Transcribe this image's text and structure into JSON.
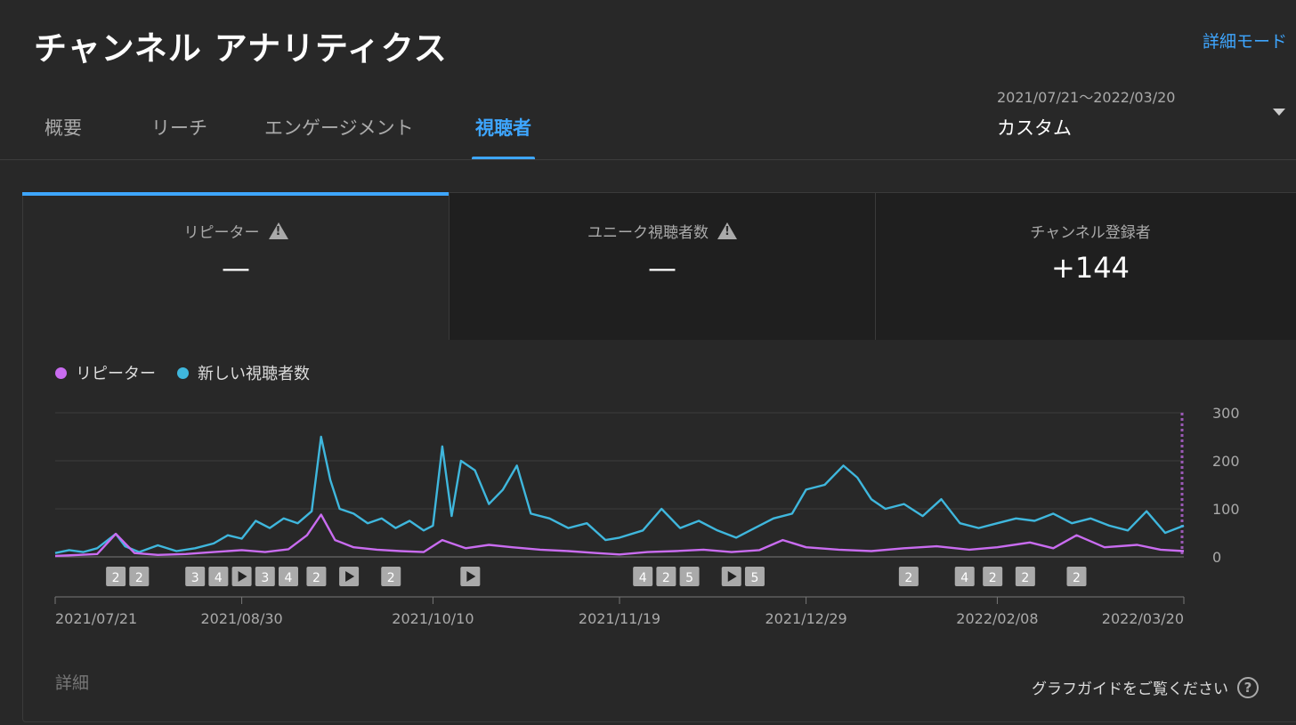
{
  "header": {
    "title": "チャンネル アナリティクス",
    "advanced_mode": "詳細モード"
  },
  "tabs": [
    {
      "label": "概要",
      "active": false
    },
    {
      "label": "リーチ",
      "active": false
    },
    {
      "label": "エンゲージメント",
      "active": false
    },
    {
      "label": "視聴者",
      "active": true
    }
  ],
  "date_picker": {
    "range": "2021/07/21〜2022/03/20",
    "label": "カスタム"
  },
  "metrics": [
    {
      "label": "リピーター",
      "value": "—",
      "warning": true
    },
    {
      "label": "ユニーク視聴者数",
      "value": "—",
      "warning": true
    },
    {
      "label": "チャンネル登録者",
      "value": "+144",
      "warning": false
    }
  ],
  "legend": [
    {
      "label": "リピーター",
      "color": "#c96cf0"
    },
    {
      "label": "新しい視聴者数",
      "color": "#3fb7dd"
    }
  ],
  "chart_data": {
    "type": "line",
    "x_start": "2021/07/21",
    "x_end": "2022/03/20",
    "x_ticks": [
      "2021/07/21",
      "2021/08/30",
      "2021/10/10",
      "2021/11/19",
      "2021/12/29",
      "2022/02/08",
      "2022/03/20"
    ],
    "y_ticks": [
      "0",
      "100",
      "200",
      "300"
    ],
    "ylim": [
      0,
      300
    ],
    "series": [
      {
        "name": "新しい視聴者数",
        "color": "#3fb7dd",
        "points": [
          [
            "2021/07/21",
            8
          ],
          [
            "2021/07/24",
            14
          ],
          [
            "2021/07/27",
            10
          ],
          [
            "2021/07/30",
            18
          ],
          [
            "2021/08/03",
            48
          ],
          [
            "2021/08/05",
            22
          ],
          [
            "2021/08/08",
            10
          ],
          [
            "2021/08/12",
            24
          ],
          [
            "2021/08/16",
            12
          ],
          [
            "2021/08/20",
            18
          ],
          [
            "2021/08/24",
            28
          ],
          [
            "2021/08/27",
            45
          ],
          [
            "2021/08/30",
            38
          ],
          [
            "2021/09/02",
            75
          ],
          [
            "2021/09/05",
            60
          ],
          [
            "2021/09/08",
            80
          ],
          [
            "2021/09/11",
            70
          ],
          [
            "2021/09/14",
            95
          ],
          [
            "2021/09/16",
            250
          ],
          [
            "2021/09/18",
            160
          ],
          [
            "2021/09/20",
            100
          ],
          [
            "2021/09/23",
            90
          ],
          [
            "2021/09/26",
            70
          ],
          [
            "2021/09/29",
            80
          ],
          [
            "2021/10/02",
            60
          ],
          [
            "2021/10/05",
            75
          ],
          [
            "2021/10/08",
            55
          ],
          [
            "2021/10/10",
            65
          ],
          [
            "2021/10/12",
            230
          ],
          [
            "2021/10/14",
            85
          ],
          [
            "2021/10/16",
            200
          ],
          [
            "2021/10/19",
            180
          ],
          [
            "2021/10/22",
            110
          ],
          [
            "2021/10/25",
            140
          ],
          [
            "2021/10/28",
            190
          ],
          [
            "2021/10/31",
            90
          ],
          [
            "2021/11/04",
            80
          ],
          [
            "2021/11/08",
            60
          ],
          [
            "2021/11/12",
            70
          ],
          [
            "2021/11/16",
            35
          ],
          [
            "2021/11/19",
            40
          ],
          [
            "2021/11/24",
            55
          ],
          [
            "2021/11/28",
            100
          ],
          [
            "2021/12/02",
            60
          ],
          [
            "2021/12/06",
            75
          ],
          [
            "2021/12/10",
            55
          ],
          [
            "2021/12/14",
            40
          ],
          [
            "2021/12/18",
            60
          ],
          [
            "2021/12/22",
            80
          ],
          [
            "2021/12/26",
            90
          ],
          [
            "2021/12/29",
            140
          ],
          [
            "2022/01/02",
            150
          ],
          [
            "2022/01/06",
            190
          ],
          [
            "2022/01/09",
            165
          ],
          [
            "2022/01/12",
            120
          ],
          [
            "2022/01/15",
            100
          ],
          [
            "2022/01/19",
            110
          ],
          [
            "2022/01/23",
            85
          ],
          [
            "2022/01/27",
            120
          ],
          [
            "2022/01/31",
            70
          ],
          [
            "2022/02/04",
            60
          ],
          [
            "2022/02/08",
            70
          ],
          [
            "2022/02/12",
            80
          ],
          [
            "2022/02/16",
            75
          ],
          [
            "2022/02/20",
            90
          ],
          [
            "2022/02/24",
            70
          ],
          [
            "2022/02/28",
            80
          ],
          [
            "2022/03/04",
            65
          ],
          [
            "2022/03/08",
            55
          ],
          [
            "2022/03/12",
            95
          ],
          [
            "2022/03/16",
            50
          ],
          [
            "2022/03/20",
            65
          ]
        ]
      },
      {
        "name": "リピーター",
        "color": "#c96cf0",
        "points": [
          [
            "2021/07/21",
            2
          ],
          [
            "2021/07/26",
            4
          ],
          [
            "2021/07/30",
            6
          ],
          [
            "2021/08/03",
            48
          ],
          [
            "2021/08/07",
            8
          ],
          [
            "2021/08/12",
            4
          ],
          [
            "2021/08/18",
            6
          ],
          [
            "2021/08/24",
            10
          ],
          [
            "2021/08/30",
            14
          ],
          [
            "2021/09/04",
            10
          ],
          [
            "2021/09/09",
            16
          ],
          [
            "2021/09/13",
            45
          ],
          [
            "2021/09/16",
            88
          ],
          [
            "2021/09/19",
            35
          ],
          [
            "2021/09/23",
            20
          ],
          [
            "2021/09/28",
            15
          ],
          [
            "2021/10/03",
            12
          ],
          [
            "2021/10/08",
            10
          ],
          [
            "2021/10/12",
            35
          ],
          [
            "2021/10/17",
            18
          ],
          [
            "2021/10/22",
            25
          ],
          [
            "2021/10/27",
            20
          ],
          [
            "2021/11/02",
            15
          ],
          [
            "2021/11/08",
            12
          ],
          [
            "2021/11/14",
            8
          ],
          [
            "2021/11/19",
            5
          ],
          [
            "2021/11/25",
            10
          ],
          [
            "2021/12/01",
            12
          ],
          [
            "2021/12/07",
            15
          ],
          [
            "2021/12/13",
            10
          ],
          [
            "2021/12/19",
            14
          ],
          [
            "2021/12/24",
            35
          ],
          [
            "2021/12/29",
            20
          ],
          [
            "2022/01/05",
            15
          ],
          [
            "2022/01/12",
            12
          ],
          [
            "2022/01/19",
            18
          ],
          [
            "2022/01/26",
            22
          ],
          [
            "2022/02/02",
            15
          ],
          [
            "2022/02/08",
            20
          ],
          [
            "2022/02/15",
            30
          ],
          [
            "2022/02/20",
            18
          ],
          [
            "2022/02/25",
            45
          ],
          [
            "2022/03/03",
            20
          ],
          [
            "2022/03/10",
            25
          ],
          [
            "2022/03/15",
            15
          ],
          [
            "2022/03/20",
            12
          ]
        ]
      }
    ],
    "markers": [
      {
        "date": "2021/08/03",
        "label": "2"
      },
      {
        "date": "2021/08/08",
        "label": "2"
      },
      {
        "date": "2021/08/20",
        "label": "3"
      },
      {
        "date": "2021/08/25",
        "label": "4"
      },
      {
        "date": "2021/08/30",
        "label": "▶"
      },
      {
        "date": "2021/09/04",
        "label": "3"
      },
      {
        "date": "2021/09/09",
        "label": "4"
      },
      {
        "date": "2021/09/15",
        "label": "2"
      },
      {
        "date": "2021/09/22",
        "label": "▶"
      },
      {
        "date": "2021/10/01",
        "label": "2"
      },
      {
        "date": "2021/10/18",
        "label": "▶"
      },
      {
        "date": "2021/11/24",
        "label": "4"
      },
      {
        "date": "2021/11/29",
        "label": "2"
      },
      {
        "date": "2021/12/04",
        "label": "5"
      },
      {
        "date": "2021/12/13",
        "label": "▶"
      },
      {
        "date": "2021/12/18",
        "label": "5"
      },
      {
        "date": "2022/01/20",
        "label": "2"
      },
      {
        "date": "2022/02/01",
        "label": "4"
      },
      {
        "date": "2022/02/07",
        "label": "2"
      },
      {
        "date": "2022/02/14",
        "label": "2"
      },
      {
        "date": "2022/02/25",
        "label": "2"
      }
    ]
  },
  "footer": {
    "detail": "詳細",
    "guide": "グラフガイドをご覧ください"
  }
}
